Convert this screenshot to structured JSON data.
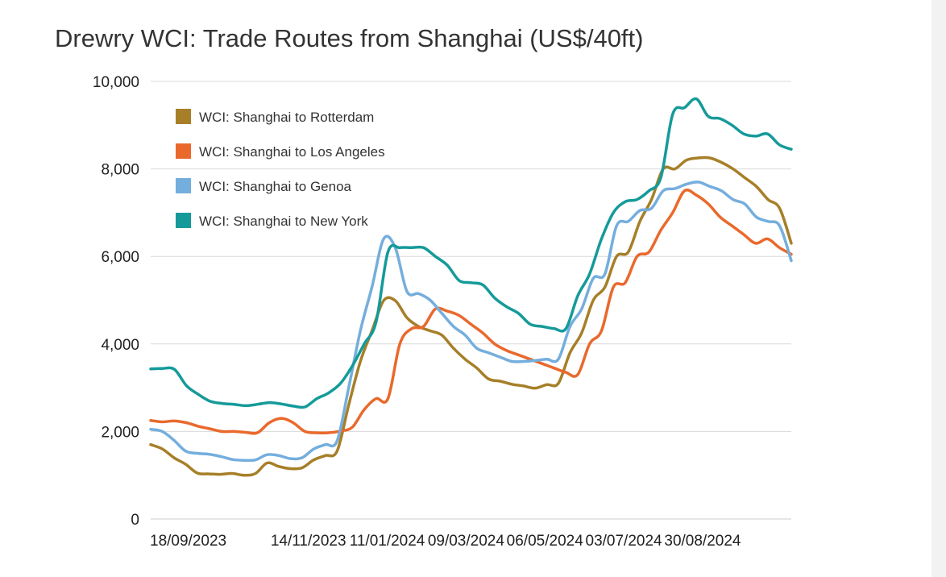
{
  "chart_data": {
    "type": "line",
    "title": "Drewry WCI: Trade Routes from Shanghai (US$/40ft)",
    "x_tick_labels": [
      "18/09/2023",
      "14/11/2023",
      "11/01/2024",
      "09/03/2024",
      "06/05/2024",
      "03/07/2024",
      "30/08/2024"
    ],
    "y_tick_labels": [
      "0",
      "2,000",
      "4,000",
      "6,000",
      "8,000",
      "10,000"
    ],
    "ylim": [
      0,
      10000
    ],
    "xlim": [
      0,
      65
    ],
    "grid": true,
    "legend_position": "top-left",
    "x": [
      0,
      1,
      2,
      3,
      4,
      5,
      6,
      7,
      8,
      9,
      10,
      11,
      12,
      13,
      14,
      15,
      16,
      17,
      18,
      19,
      20,
      21,
      22,
      23,
      24,
      25,
      26,
      27,
      28,
      29,
      30,
      31,
      32,
      33,
      34,
      35,
      36,
      37,
      38,
      39,
      40,
      41,
      42,
      43,
      44,
      45,
      46,
      47,
      48,
      49,
      50,
      51,
      52,
      53,
      54,
      55,
      56,
      57,
      58,
      59,
      60,
      61,
      62,
      63,
      64,
      65
    ],
    "series": [
      {
        "name": "WCI: Shanghai to Rotterdam",
        "color": "#a67f28",
        "values": [
          1700,
          1600,
          1400,
          1250,
          1050,
          1030,
          1020,
          1040,
          1000,
          1040,
          1280,
          1200,
          1150,
          1170,
          1350,
          1450,
          1550,
          2600,
          3600,
          4300,
          4990,
          4990,
          4600,
          4400,
          4300,
          4200,
          3900,
          3650,
          3450,
          3200,
          3150,
          3080,
          3040,
          2990,
          3070,
          3100,
          3800,
          4250,
          5000,
          5300,
          6000,
          6100,
          6800,
          7300,
          8000,
          8000,
          8200,
          8250,
          8250,
          8150,
          8000,
          7800,
          7600,
          7300,
          7100,
          6300,
          null,
          null,
          null,
          null,
          null,
          null,
          null,
          null,
          null,
          null
        ]
      },
      {
        "name": "WCI: Shanghai to Los Angeles",
        "color": "#e9692c",
        "values": [
          2250,
          2220,
          2240,
          2200,
          2120,
          2060,
          2000,
          2000,
          1980,
          1970,
          2200,
          2300,
          2200,
          2000,
          1970,
          1970,
          2010,
          2100,
          2500,
          2750,
          2750,
          4000,
          4350,
          4400,
          4800,
          4750,
          4650,
          4450,
          4250,
          4000,
          3850,
          3750,
          3650,
          3550,
          3450,
          3350,
          3300,
          4000,
          4300,
          5300,
          5400,
          6000,
          6100,
          6600,
          7000,
          7500,
          7400,
          7200,
          6900,
          6700,
          6500,
          6300,
          6400,
          6200,
          6050,
          null,
          null,
          null,
          null,
          null,
          null,
          null,
          null,
          null,
          null,
          null
        ]
      },
      {
        "name": "WCI: Shanghai to Genoa",
        "color": "#74aedd",
        "values": [
          2050,
          2000,
          1800,
          1550,
          1500,
          1480,
          1430,
          1360,
          1340,
          1350,
          1470,
          1450,
          1380,
          1400,
          1600,
          1700,
          1780,
          3000,
          4300,
          5300,
          6400,
          6200,
          5200,
          5150,
          5000,
          4700,
          4400,
          4200,
          3900,
          3800,
          3700,
          3600,
          3600,
          3620,
          3650,
          3650,
          4400,
          4800,
          5500,
          5600,
          6700,
          6800,
          7050,
          7100,
          7500,
          7550,
          7650,
          7700,
          7600,
          7500,
          7300,
          7200,
          6900,
          6800,
          6700,
          5900,
          null,
          null,
          null,
          null,
          null,
          null,
          null,
          null,
          null,
          null
        ]
      },
      {
        "name": "WCI: Shanghai to New York",
        "color": "#159a9a",
        "values": [
          3430,
          3440,
          3420,
          3050,
          2850,
          2690,
          2640,
          2620,
          2590,
          2620,
          2660,
          2630,
          2580,
          2560,
          2750,
          2880,
          3100,
          3500,
          4000,
          4500,
          6100,
          6200,
          6200,
          6200,
          6000,
          5800,
          5450,
          5400,
          5350,
          5050,
          4850,
          4700,
          4450,
          4400,
          4350,
          4350,
          5100,
          5600,
          6400,
          7000,
          7250,
          7300,
          7500,
          7800,
          9250,
          9400,
          9600,
          9200,
          9150,
          9000,
          8800,
          8750,
          8800,
          8550,
          8450,
          null,
          null,
          null,
          null,
          null,
          null,
          null,
          null,
          null,
          null,
          null
        ]
      }
    ]
  }
}
